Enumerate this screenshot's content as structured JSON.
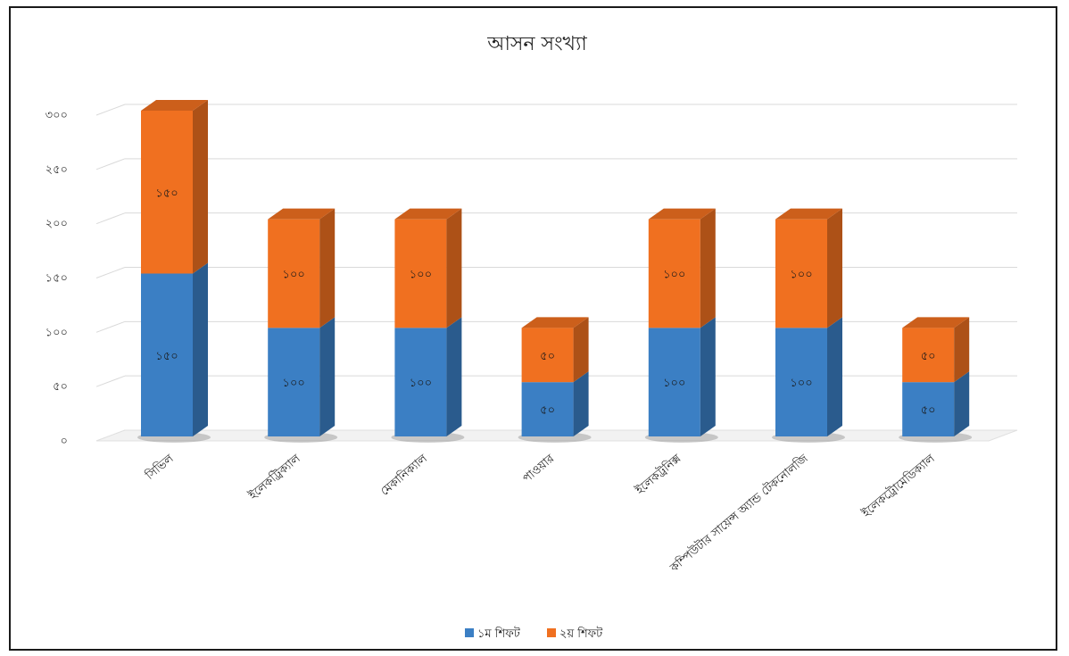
{
  "chart_data": {
    "type": "bar",
    "stacked": true,
    "three_d": true,
    "title": "আসন সংখ্যা",
    "categories": [
      "সিভিল",
      "ইলেকট্রিক্যাল",
      "মেকানিক্যাল",
      "পাওয়ার",
      "ইলেকট্রনিক্স",
      "কম্পিউটার সায়েন্স অ্যান্ড টেকনোলজি",
      "ইলেকট্রোমেডিক্যাল"
    ],
    "series": [
      {
        "name": "১ম শিফট",
        "color": "#3b7fc4",
        "values": [
          150,
          100,
          100,
          50,
          100,
          100,
          50
        ],
        "labels": [
          "১৫০",
          "১০০",
          "১০০",
          "৫০",
          "১০০",
          "১০০",
          "৫০"
        ]
      },
      {
        "name": "২য় শিফট",
        "color": "#f07020",
        "values": [
          150,
          100,
          100,
          50,
          100,
          100,
          50
        ],
        "labels": [
          "১৫০",
          "১০০",
          "১০০",
          "৫০",
          "১০০",
          "১০০",
          "৫০"
        ]
      }
    ],
    "y_ticks": [
      0,
      50,
      100,
      150,
      200,
      250,
      300
    ],
    "y_tick_labels": [
      "০",
      "৫০",
      "১০০",
      "১৫০",
      "২০০",
      "২৫০",
      "৩০০"
    ],
    "ylim": [
      0,
      300
    ],
    "grid": true,
    "legend_position": "bottom"
  }
}
